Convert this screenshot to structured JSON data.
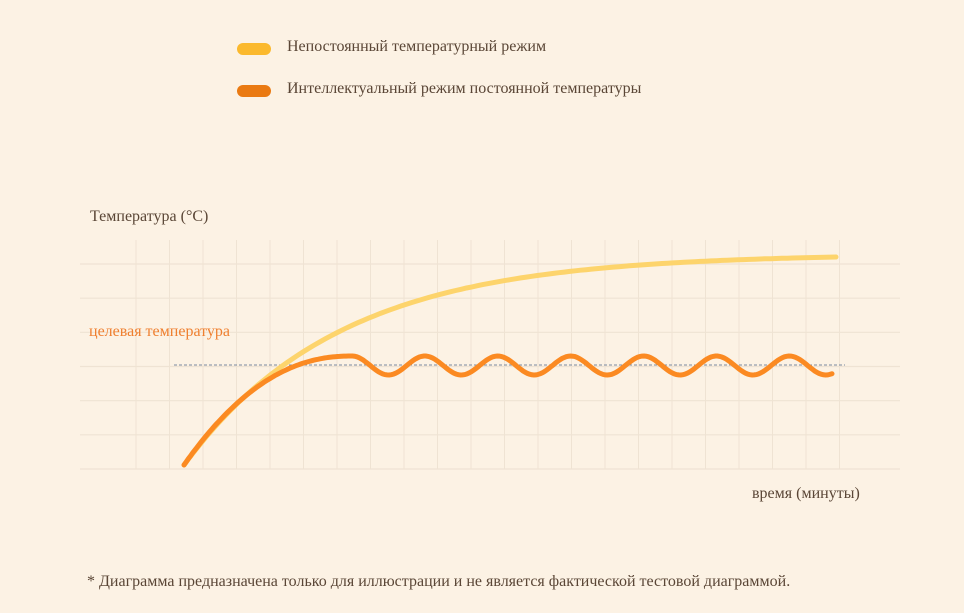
{
  "legend": {
    "items": [
      {
        "label": "Непостоянный температурный режим",
        "color": "#fbb92d"
      },
      {
        "label": "Интеллектуальный режим постоянной температуры",
        "color": "#ea7a12"
      }
    ]
  },
  "axes": {
    "ylabel": "Температура (°C)",
    "xlabel": "время (минуты)",
    "target_label": "целевая температура"
  },
  "footnote": "* Диаграмма предназначена только для иллюстрации и не является фактической тестовой диаграммой.",
  "colors": {
    "background": "#fcf2e4",
    "grid": "#efe3d3",
    "series_fluctuating": "#fdd46c",
    "series_constant": "#fb8a22",
    "target_line": "#7a8aa0",
    "target_label": "#ef7f2f"
  },
  "chart_data": {
    "type": "line",
    "title": "",
    "xlabel": "время (минуты)",
    "ylabel": "Температура (°C)",
    "grid": true,
    "legend_position": "top",
    "ticks_labeled": false,
    "annotations": [
      "целевая температура",
      "* Диаграмма предназначена только для иллюстрации и не является фактической тестовой диаграммой."
    ],
    "target_level": 3,
    "ylim": [
      0,
      6
    ],
    "xlim": [
      0,
      24
    ],
    "x": [
      3,
      4,
      5,
      6,
      7,
      8,
      9,
      10,
      11,
      12,
      13,
      14,
      15,
      16,
      17,
      18,
      19,
      20,
      21,
      22,
      23
    ],
    "series": [
      {
        "name": "Непостоянный температурный режим",
        "values": [
          0.0,
          1.6,
          2.5,
          3.2,
          3.7,
          4.1,
          4.45,
          4.75,
          5.0,
          5.2,
          5.35,
          5.5,
          5.6,
          5.7,
          5.77,
          5.83,
          5.87,
          5.9,
          5.92,
          5.93,
          5.93
        ]
      },
      {
        "name": "Интеллектуальный режим постоянной температуры",
        "values": [
          0.0,
          1.1,
          1.9,
          2.5,
          2.95,
          3.3,
          3.25,
          2.7,
          3.3,
          2.7,
          3.3,
          2.7,
          3.3,
          2.7,
          3.3,
          2.7,
          3.3,
          2.7,
          3.3,
          2.7,
          2.8
        ]
      }
    ]
  }
}
